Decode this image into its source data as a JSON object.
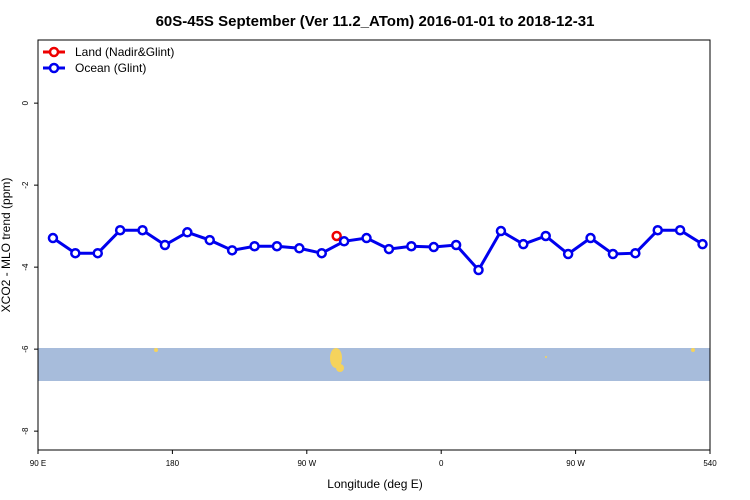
{
  "chart_data": {
    "type": "line",
    "title": "60S-45S September (Ver 11.2_ATom)   2016-01-01 to 2018-12-31",
    "x_label": "Longitude (deg E)",
    "y_label": "XCO2 - MLO trend (ppm)",
    "xlim": [
      90,
      540
    ],
    "ylim": [
      -8.46,
      1.54
    ],
    "xticks": [
      {
        "value": 90,
        "label": "90 E"
      },
      180,
      {
        "value": 270,
        "label": "90 W"
      },
      {
        "value": 360,
        "label": "0"
      },
      {
        "value": 450,
        "label": "90 W"
      },
      540
    ],
    "yticks": [
      0,
      -2,
      -4,
      -6,
      -8
    ],
    "legend": "top-left",
    "series": [
      {
        "name": "Land (Nadir&Glint)",
        "color": "#ee0000",
        "x": [
          290
        ],
        "values": [
          -3.24
        ]
      },
      {
        "name": "Ocean (Glint)",
        "color": "#0000ee",
        "x": [
          100,
          115,
          130,
          145,
          160,
          175,
          190,
          205,
          220,
          235,
          250,
          265,
          280,
          295,
          310,
          325,
          340,
          355,
          370,
          385,
          400,
          415,
          430,
          445,
          460,
          475,
          490,
          505,
          520,
          535
        ],
        "values": [
          -3.29,
          -3.66,
          -3.66,
          -3.1,
          -3.1,
          -3.46,
          -3.15,
          -3.34,
          -3.59,
          -3.49,
          -3.49,
          -3.54,
          -3.66,
          -3.37,
          -3.29,
          -3.56,
          -3.49,
          -3.51,
          -3.46,
          -4.07,
          -3.12,
          -3.44,
          -3.24,
          -3.68,
          -3.29,
          -3.68,
          -3.66,
          -3.1,
          -3.1,
          -3.44
        ]
      }
    ]
  }
}
